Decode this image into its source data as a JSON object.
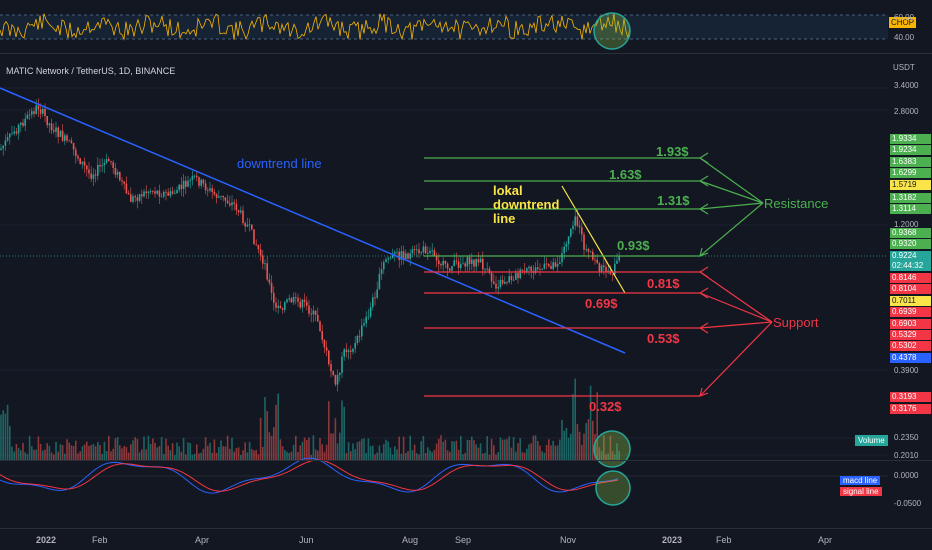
{
  "symbol_text": "MATIC Network / TetherUS, 1D, BINANCE",
  "chop": {
    "badge": "CHOP",
    "levels": [
      "60.00",
      "40.00"
    ]
  },
  "currency": "USDT",
  "colors": {
    "bg": "#131722",
    "up": "#26a69a",
    "down": "#ef5350",
    "resistance": "#4caf50",
    "support": "#f23645",
    "trend": "#2962ff",
    "yellow": "#f9e547"
  },
  "price_axis": [
    "3.4000",
    "2.8000",
    "1.2000",
    "0.3900",
    "0.2350",
    "0.2010"
  ],
  "price_labels": [
    {
      "text": "1.9334",
      "color": "#4caf50"
    },
    {
      "text": "1.9234",
      "color": "#4caf50"
    },
    {
      "text": "1.6383",
      "color": "#4caf50"
    },
    {
      "text": "1.6299",
      "color": "#4caf50"
    },
    {
      "text": "1.5719",
      "color": "#f9e547"
    },
    {
      "text": "1.3182",
      "color": "#4caf50"
    },
    {
      "text": "1.3114",
      "color": "#4caf50"
    },
    {
      "text": "0.9368",
      "color": "#4caf50"
    },
    {
      "text": "0.9320",
      "color": "#4caf50"
    },
    {
      "text": "0.9224",
      "color": "#26a69a"
    },
    {
      "text": "02:44:32",
      "color": "#26a69a"
    },
    {
      "text": "0.8146",
      "color": "#f23645"
    },
    {
      "text": "0.8104",
      "color": "#f23645"
    },
    {
      "text": "0.7011",
      "color": "#f9e547"
    },
    {
      "text": "0.6939",
      "color": "#f23645"
    },
    {
      "text": "0.6903",
      "color": "#f23645"
    },
    {
      "text": "0.5329",
      "color": "#f23645"
    },
    {
      "text": "0.5302",
      "color": "#f23645"
    },
    {
      "text": "0.4378",
      "color": "#2962ff"
    },
    {
      "text": "0.3193",
      "color": "#f23645"
    },
    {
      "text": "0.3176",
      "color": "#f23645"
    }
  ],
  "macd_axis": [
    "0.0000",
    "-0.0500"
  ],
  "time_labels": [
    "2022",
    "Feb",
    "Apr",
    "Jun",
    "Aug",
    "Sep",
    "Nov",
    "2023",
    "Feb",
    "Apr"
  ],
  "annotations": {
    "downtrend": "downtrend line",
    "lokal": [
      "lokal",
      "downtrend",
      "line"
    ],
    "resistance_label": "Resistance",
    "support_label": "Support"
  },
  "resistance_levels": [
    "1.93$",
    "1.63$",
    "1.31$",
    "0.93$"
  ],
  "support_levels": [
    "0.81$",
    "0.69$",
    "0.53$",
    "0.32$"
  ],
  "volume_badge": "Volume",
  "macd_legend": [
    "macd line",
    "signal line"
  ],
  "chart_data": {
    "type": "candlestick",
    "symbol": "MATICUSDT",
    "timeframe": "1D",
    "last_price": 0.9224,
    "resistance": [
      1.93,
      1.63,
      1.31,
      0.93
    ],
    "support": [
      0.81,
      0.69,
      0.53,
      0.32
    ],
    "yscale": "log"
  }
}
